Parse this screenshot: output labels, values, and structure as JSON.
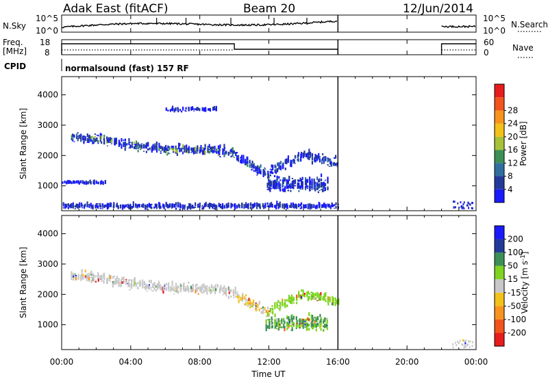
{
  "header": {
    "station": "Adak East (fitACF)",
    "beam": "Beam 20",
    "date": "12/Jun/2014"
  },
  "noise_panel": {
    "left_label": "N.Sky",
    "left_ticks": [
      "10^5",
      "10^0"
    ],
    "right_label": "N.Search",
    "right_ticks": [
      "10^5",
      "10^0"
    ]
  },
  "freq_panel": {
    "left_label_line1": "Freq.",
    "left_label_line2": "[MHz]",
    "left_ticks": [
      "18",
      "8"
    ],
    "right_label": "Nave",
    "right_ticks": [
      "60",
      "0"
    ]
  },
  "cpid_panel": {
    "label": "CPID",
    "text": "normalsound (fast) 157 RF"
  },
  "time_axis": {
    "title": "Time UT",
    "ticks": [
      "00:00",
      "04:00",
      "08:00",
      "12:00",
      "16:00",
      "20:00",
      "00:00"
    ]
  },
  "colors": {
    "power": [
      "#1a1aff",
      "#23399a",
      "#2f6f9f",
      "#3c8f56",
      "#a8c13a",
      "#f2c11a",
      "#f7931e",
      "#f2541e",
      "#e81c1c"
    ],
    "velocity": [
      "#e81c1c",
      "#f2541e",
      "#f7931e",
      "#f2c11a",
      "#c8c8c8",
      "#7ed321",
      "#3c8f56",
      "#23399a",
      "#1a1aff"
    ]
  },
  "chart_data": [
    {
      "type": "heatmap",
      "title": "Power",
      "xlabel": "",
      "ylabel": "Slant Range [km]",
      "y_ticks": [
        "1000",
        "2000",
        "3000",
        "4000"
      ],
      "colorbar_label": "Power [dB]",
      "colorbar_ticks": [
        "4",
        "8",
        "12",
        "16",
        "20",
        "24",
        "28"
      ],
      "x_range_hours": [
        0,
        24
      ],
      "y_range_km": [
        180,
        4600
      ],
      "data_gaps_hours": [
        [
          16,
          22
        ]
      ],
      "echo_regions": [
        {
          "feature": "near-range band",
          "t_hours": [
            0,
            16
          ],
          "range_km": [
            180,
            400
          ]
        },
        {
          "feature": "ionospheric band",
          "t_hours": [
            0.5,
            10
          ],
          "range_km": [
            1900,
            2600
          ],
          "peak_power_dB": 20
        },
        {
          "feature": "descending band",
          "t_hours": [
            10,
            12
          ],
          "range_km": [
            1200,
            2000
          ],
          "peak_power_dB": 16
        },
        {
          "feature": "ascending band",
          "t_hours": [
            12,
            16
          ],
          "range_km": [
            1500,
            2400
          ],
          "peak_power_dB": 12
        },
        {
          "feature": "E-region patch",
          "t_hours": [
            11.8,
            15.4
          ],
          "range_km": [
            650,
            1350
          ],
          "peak_power_dB": 12
        },
        {
          "feature": "weak band",
          "t_hours": [
            0,
            2.5
          ],
          "range_km": [
            1000,
            1150
          ],
          "peak_power_dB": 4
        },
        {
          "feature": "high-range echoes",
          "t_hours": [
            6,
            9
          ],
          "range_km": [
            3400,
            3550
          ],
          "peak_power_dB": 4
        }
      ]
    },
    {
      "type": "heatmap",
      "title": "Velocity",
      "xlabel": "Time UT",
      "ylabel": "Slant Range [km]",
      "y_ticks": [
        "1000",
        "2000",
        "3000",
        "4000"
      ],
      "colorbar_label": "Velocity [m s^-1]",
      "colorbar_ticks": [
        "200",
        "100",
        "50",
        "15",
        "-15",
        "-50",
        "-100",
        "-200"
      ],
      "x_range_hours": [
        0,
        24
      ],
      "y_range_km": [
        180,
        4600
      ],
      "data_gaps_hours": [
        [
          16,
          22
        ]
      ],
      "echo_regions": [
        {
          "feature": "ionospheric band",
          "t_hours": [
            0.5,
            10
          ],
          "range_km": [
            1900,
            2600
          ],
          "velocity_m_s": [
            -15,
            15
          ]
        },
        {
          "feature": "descending band",
          "t_hours": [
            10,
            12
          ],
          "range_km": [
            1200,
            2000
          ],
          "velocity_m_s": [
            -50,
            15
          ]
        },
        {
          "feature": "ascending band",
          "t_hours": [
            12,
            16
          ],
          "range_km": [
            1500,
            2400
          ],
          "velocity_m_s": [
            15,
            50
          ]
        },
        {
          "feature": "E-region patch",
          "t_hours": [
            11.8,
            15.4
          ],
          "range_km": [
            650,
            1350
          ],
          "velocity_m_s": [
            15,
            100
          ]
        }
      ]
    }
  ]
}
